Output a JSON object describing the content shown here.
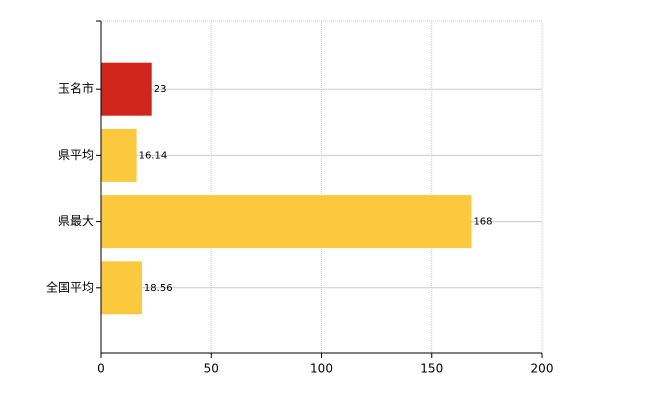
{
  "chart_data": {
    "type": "bar",
    "orientation": "horizontal",
    "categories": [
      "玉名市",
      "県平均",
      "県最大",
      "全国平均"
    ],
    "values": [
      23,
      16.14,
      168,
      18.56
    ],
    "colors": [
      "#d0251a",
      "#fcc83d",
      "#fcc83d",
      "#fcc83d"
    ],
    "xlim": [
      0,
      200
    ],
    "xticks": [
      0,
      50,
      100,
      150,
      200
    ],
    "grid": true
  }
}
